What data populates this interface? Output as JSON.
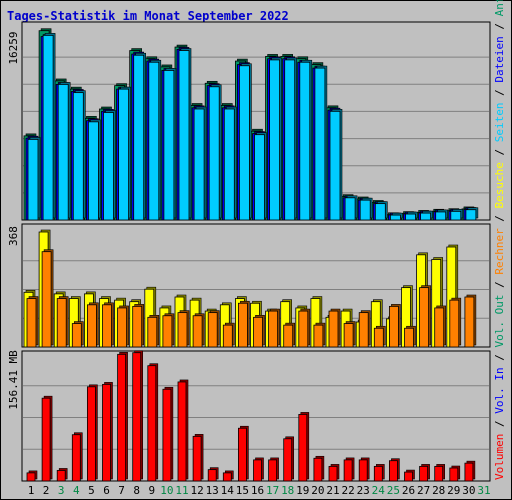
{
  "chart_data": {
    "type": "bar",
    "title": "Tages-Statistik im Monat September 2022",
    "x_labels": [
      "1",
      "2",
      "3",
      "4",
      "5",
      "6",
      "7",
      "8",
      "9",
      "10",
      "11",
      "12",
      "13",
      "14",
      "15",
      "16",
      "17",
      "18",
      "19",
      "20",
      "21",
      "22",
      "23",
      "24",
      "25",
      "26",
      "27",
      "28",
      "29",
      "30",
      "31"
    ],
    "weekend_days": [
      "3",
      "4",
      "10",
      "11",
      "17",
      "18",
      "24",
      "25",
      "31"
    ],
    "grid": true,
    "panels": [
      {
        "name": "requests",
        "max_label": "16259",
        "ylim": [
          0,
          16259
        ],
        "series": [
          {
            "name": "Anfragen",
            "color": "#009966",
            "values": [
              7200,
              16200,
              11900,
              11200,
              8700,
              9500,
              11500,
              14500,
              13800,
              13100,
              14800,
              9800,
              11700,
              9800,
              13600,
              7600,
              14000,
              14000,
              13800,
              13300,
              9600,
              2000,
              1800,
              1500,
              450,
              550,
              650,
              750,
              800,
              950,
              0
            ]
          },
          {
            "name": "Dateien",
            "color": "#0000ff",
            "values": [
              7000,
              15700,
              11600,
              11000,
              8500,
              9300,
              11200,
              14200,
              13600,
              12800,
              14600,
              9600,
              11500,
              9600,
              13300,
              7400,
              13800,
              13800,
              13500,
              13000,
              9400,
              1900,
              1700,
              1400,
              430,
              520,
              600,
              700,
              750,
              900,
              0
            ]
          },
          {
            "name": "Seiten",
            "color": "#00ccff",
            "values": [
              6900,
              15800,
              11600,
              10900,
              8400,
              9200,
              11200,
              14100,
              13500,
              12800,
              14500,
              9500,
              11400,
              9500,
              13200,
              7300,
              13700,
              13700,
              13500,
              13000,
              9300,
              1900,
              1700,
              1400,
              420,
              510,
              590,
              690,
              740,
              880,
              0
            ]
          }
        ]
      },
      {
        "name": "visits",
        "max_label": "368",
        "ylim": [
          0,
          368
        ],
        "series": [
          {
            "name": "Besuche",
            "color": "#ffff00",
            "values": [
              175,
              368,
              170,
              155,
              170,
              155,
              150,
              145,
              185,
              125,
              160,
              150,
              115,
              135,
              155,
              140,
              115,
              145,
              125,
              155,
              95,
              115,
              80,
              145,
              90,
              190,
              295,
              280,
              320,
              0,
              0
            ]
          },
          {
            "name": "Rechner",
            "color": "#ff8000",
            "values": [
              155,
              305,
              155,
              75,
              135,
              135,
              125,
              130,
              95,
              100,
              110,
              100,
              110,
              70,
              140,
              95,
              115,
              70,
              115,
              70,
              115,
              75,
              110,
              60,
              130,
              60,
              190,
              125,
              150,
              160,
              0
            ]
          }
        ]
      },
      {
        "name": "volume",
        "max_label": "156.41 MB",
        "ylim": [
          0,
          156.41
        ],
        "series": [
          {
            "name": "Volumen",
            "color": "#ff0000",
            "values": [
              10,
              102,
              13,
              57,
              116,
              119,
              156,
              158,
              142,
              113,
              122,
              55,
              14,
              10,
              65,
              26,
              26,
              52,
              82,
              28,
              18,
              26,
              26,
              18,
              25,
              11,
              18,
              18,
              16,
              22,
              0
            ]
          }
        ]
      }
    ],
    "legend": [
      {
        "label": "Volumen",
        "color": "#ff0000"
      },
      {
        "label": " / ",
        "color": "#000000"
      },
      {
        "label": "Vol. In",
        "color": "#0000ff"
      },
      {
        "label": " / ",
        "color": "#000000"
      },
      {
        "label": "Vol. Out",
        "color": "#009966"
      },
      {
        "label": " / ",
        "color": "#000000"
      },
      {
        "label": "Rechner",
        "color": "#ff8000"
      },
      {
        "label": " / ",
        "color": "#000000"
      },
      {
        "label": "Besuche",
        "color": "#ffff00"
      },
      {
        "label": " / ",
        "color": "#000000"
      },
      {
        "label": "Seiten",
        "color": "#00ccff"
      },
      {
        "label": " / ",
        "color": "#000000"
      },
      {
        "label": "Dateien",
        "color": "#0000ff"
      },
      {
        "label": " / ",
        "color": "#000000"
      },
      {
        "label": "Anfragen",
        "color": "#009966"
      }
    ]
  }
}
